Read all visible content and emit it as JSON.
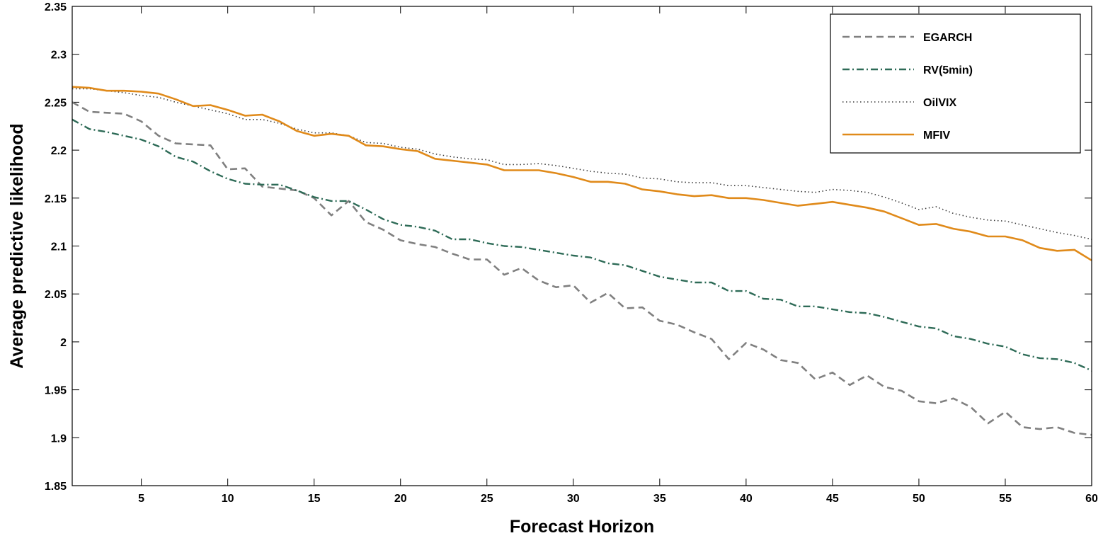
{
  "chart_data": {
    "type": "line",
    "title": "",
    "xlabel": "Forecast Horizon",
    "ylabel": "Average predictive likelihood",
    "xlim": [
      1,
      60
    ],
    "ylim": [
      1.85,
      2.35
    ],
    "xticks": [
      5,
      10,
      15,
      20,
      25,
      30,
      35,
      40,
      45,
      50,
      55,
      60
    ],
    "yticks": [
      1.85,
      1.9,
      1.95,
      2,
      2.05,
      2.1,
      2.15,
      2.2,
      2.25,
      2.3,
      2.35
    ],
    "ytick_labels": [
      "1.85",
      "1.9",
      "1.95",
      "2",
      "2.05",
      "2.1",
      "2.15",
      "2.2",
      "2.25",
      "2.3",
      "2.35"
    ],
    "grid": false,
    "legend_position": "top-right",
    "x": [
      1,
      2,
      3,
      4,
      5,
      6,
      7,
      8,
      9,
      10,
      11,
      12,
      13,
      14,
      15,
      16,
      17,
      18,
      19,
      20,
      21,
      22,
      23,
      24,
      25,
      26,
      27,
      28,
      29,
      30,
      31,
      32,
      33,
      34,
      35,
      36,
      37,
      38,
      39,
      40,
      41,
      42,
      43,
      44,
      45,
      46,
      47,
      48,
      49,
      50,
      51,
      52,
      53,
      54,
      55,
      56,
      57,
      58,
      59,
      60
    ],
    "series": [
      {
        "name": "EGARCH",
        "color": "#808080",
        "style": "dashed",
        "values": [
          2.25,
          2.24,
          2.239,
          2.238,
          2.23,
          2.215,
          2.207,
          2.206,
          2.205,
          2.18,
          2.181,
          2.162,
          2.16,
          2.158,
          2.15,
          2.132,
          2.147,
          2.125,
          2.117,
          2.106,
          2.102,
          2.099,
          2.092,
          2.086,
          2.086,
          2.07,
          2.077,
          2.064,
          2.057,
          2.059,
          2.041,
          2.051,
          2.035,
          2.036,
          2.022,
          2.018,
          2.01,
          2.003,
          1.982,
          1.999,
          1.992,
          1.981,
          1.978,
          1.961,
          1.968,
          1.955,
          1.965,
          1.953,
          1.949,
          1.938,
          1.936,
          1.941,
          1.932,
          1.915,
          1.927,
          1.911,
          1.909,
          1.911,
          1.905,
          1.903
        ]
      },
      {
        "name": "RV(5min)",
        "color": "#2e6b57",
        "style": "dashdot",
        "values": [
          2.232,
          2.222,
          2.219,
          2.215,
          2.211,
          2.204,
          2.193,
          2.188,
          2.178,
          2.17,
          2.165,
          2.164,
          2.164,
          2.158,
          2.151,
          2.147,
          2.147,
          2.138,
          2.128,
          2.122,
          2.12,
          2.116,
          2.107,
          2.107,
          2.103,
          2.1,
          2.099,
          2.096,
          2.093,
          2.09,
          2.088,
          2.082,
          2.08,
          2.074,
          2.068,
          2.065,
          2.062,
          2.062,
          2.053,
          2.053,
          2.045,
          2.044,
          2.037,
          2.037,
          2.034,
          2.031,
          2.03,
          2.026,
          2.021,
          2.016,
          2.014,
          2.006,
          2.003,
          1.998,
          1.995,
          1.987,
          1.983,
          1.982,
          1.978,
          1.97
        ]
      },
      {
        "name": "OilVIX",
        "color": "#3a3a3a",
        "style": "dotted",
        "values": [
          2.264,
          2.264,
          2.262,
          2.26,
          2.257,
          2.255,
          2.25,
          2.246,
          2.242,
          2.238,
          2.232,
          2.232,
          2.228,
          2.222,
          2.218,
          2.218,
          2.215,
          2.208,
          2.207,
          2.203,
          2.201,
          2.196,
          2.193,
          2.191,
          2.19,
          2.185,
          2.185,
          2.186,
          2.184,
          2.181,
          2.178,
          2.176,
          2.175,
          2.171,
          2.17,
          2.167,
          2.166,
          2.166,
          2.163,
          2.163,
          2.161,
          2.159,
          2.157,
          2.156,
          2.159,
          2.158,
          2.156,
          2.151,
          2.145,
          2.138,
          2.141,
          2.134,
          2.13,
          2.127,
          2.126,
          2.122,
          2.118,
          2.114,
          2.111,
          2.107
        ]
      },
      {
        "name": "MFIV",
        "color": "#e08a1a",
        "style": "solid",
        "values": [
          2.266,
          2.265,
          2.262,
          2.262,
          2.261,
          2.259,
          2.253,
          2.246,
          2.247,
          2.242,
          2.236,
          2.237,
          2.23,
          2.22,
          2.215,
          2.217,
          2.215,
          2.205,
          2.204,
          2.201,
          2.199,
          2.191,
          2.189,
          2.187,
          2.185,
          2.179,
          2.179,
          2.179,
          2.176,
          2.172,
          2.167,
          2.167,
          2.165,
          2.159,
          2.157,
          2.154,
          2.152,
          2.153,
          2.15,
          2.15,
          2.148,
          2.145,
          2.142,
          2.144,
          2.146,
          2.143,
          2.14,
          2.136,
          2.129,
          2.122,
          2.123,
          2.118,
          2.115,
          2.11,
          2.11,
          2.106,
          2.098,
          2.095,
          2.096,
          2.085
        ]
      }
    ]
  }
}
